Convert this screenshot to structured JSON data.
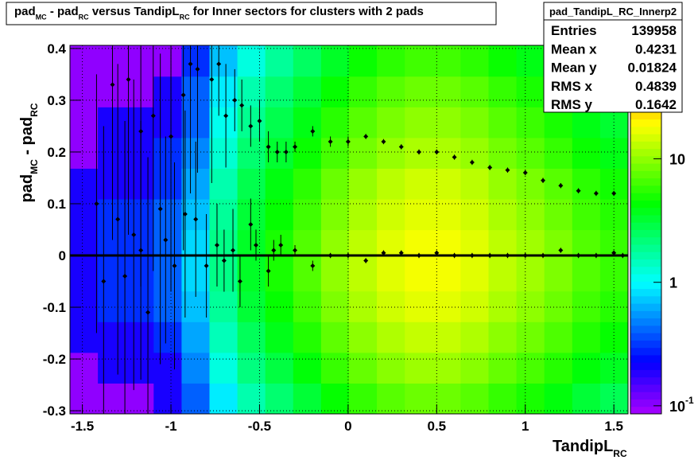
{
  "chart_data": {
    "type": "heatmap",
    "title_parts": [
      "pad",
      "MC",
      " - pad",
      "RC",
      " versus TandipL",
      "RC",
      " for Inner sectors for clusters with 2 pads"
    ],
    "ylabel_parts": [
      "pad",
      "MC",
      " - pad",
      "RC"
    ],
    "xlabel_parts": [
      "TandipL",
      "RC"
    ],
    "xlim": [
      -1.57,
      1.58
    ],
    "ylim": [
      -0.306,
      0.406
    ],
    "xticks": [
      -1.5,
      -1,
      -0.5,
      0,
      0.5,
      1,
      1.5
    ],
    "yticks": [
      -0.3,
      -0.2,
      -0.1,
      0,
      0.1,
      0.2,
      0.3,
      0.4
    ],
    "zlim": [
      0.086,
      83
    ],
    "zlog": true,
    "zticks": [
      {
        "value": 0.1,
        "label": "10",
        "exponent": "-1"
      },
      1,
      10
    ],
    "grid": true,
    "xbins": [
      -1.57,
      -1.4125,
      -1.255,
      -1.0975,
      -0.94,
      -0.7825,
      -0.625,
      -0.4675,
      -0.31,
      -0.1525,
      0.005,
      0.1625,
      0.32,
      0.4775,
      0.635,
      0.7925,
      0.95,
      1.1075,
      1.265,
      1.4225,
      1.58
    ],
    "ybins": [
      -0.306,
      -0.2467,
      -0.1874,
      -0.1281,
      -0.0688,
      -0.0095,
      0.0498,
      0.1091,
      0.1684,
      0.2277,
      0.287,
      0.3463,
      0.406
    ],
    "z": [
      [
        0.1,
        0.1,
        0.1,
        0.2,
        0.4,
        0.9,
        1.6,
        2.3,
        3.2,
        4.5,
        5.9,
        7.2,
        8.1,
        8.1,
        7.2,
        5.9,
        5,
        4.1,
        3.2,
        2.7
      ],
      [
        0.1,
        0.2,
        0.2,
        0.2,
        0.5,
        1.2,
        2.1,
        3,
        4.2,
        6,
        7.8,
        9.6,
        10.8,
        10.8,
        9.6,
        7.8,
        6.6,
        5.4,
        4.2,
        3.6
      ],
      [
        0.2,
        0.2,
        0.2,
        0.3,
        0.6,
        1.5,
        2.6,
        3.8,
        5.3,
        7.5,
        9.8,
        12,
        13.5,
        13.5,
        12,
        9.8,
        8.3,
        6.8,
        5.3,
        4.5
      ],
      [
        0.2,
        0.3,
        0.3,
        0.4,
        0.7,
        1.8,
        3.2,
        4.5,
        6.3,
        9,
        11.7,
        14.4,
        16.2,
        16.2,
        14.4,
        11.7,
        9.9,
        8.1,
        6.3,
        5.4
      ],
      [
        0.2,
        0.3,
        0.3,
        0.4,
        0.8,
        2,
        3.5,
        5,
        7,
        10,
        13,
        16,
        18,
        18,
        16,
        13,
        11,
        9,
        7,
        6
      ],
      [
        0.2,
        0.3,
        0.3,
        0.4,
        0.8,
        2,
        3.5,
        5,
        7,
        10,
        13,
        16,
        18,
        18,
        16,
        13,
        11,
        9,
        7,
        6
      ],
      [
        0.2,
        0.3,
        0.3,
        0.4,
        0.7,
        1.8,
        3.2,
        4.5,
        6.3,
        9,
        11.7,
        14.4,
        16.2,
        16.2,
        14.4,
        11.7,
        9.9,
        8.1,
        6.3,
        5.4
      ],
      [
        0.2,
        0.2,
        0.2,
        0.3,
        0.6,
        1.6,
        2.8,
        4,
        5.6,
        8,
        10.4,
        12.8,
        14.4,
        14.4,
        12.8,
        10.4,
        8.8,
        7.2,
        5.6,
        4.8
      ],
      [
        0.1,
        0.2,
        0.2,
        0.3,
        0.5,
        1.3,
        2.3,
        3.3,
        4.6,
        6.5,
        8.5,
        10.4,
        11.7,
        11.7,
        10.4,
        8.5,
        7.2,
        5.9,
        4.6,
        3.9
      ],
      [
        0.1,
        0.2,
        0.2,
        0.2,
        0.4,
        1.1,
        1.9,
        2.8,
        3.9,
        5.5,
        7.2,
        8.8,
        9.9,
        9.9,
        8.8,
        7.2,
        6.1,
        5,
        3.9,
        3.3
      ],
      [
        0.1,
        0.1,
        0.1,
        0.2,
        0.4,
        0.9,
        1.6,
        2.3,
        3.2,
        4.5,
        5.9,
        7.2,
        8.1,
        8.1,
        7.2,
        5.9,
        5,
        4.1,
        3.2,
        2.7
      ],
      [
        0.1,
        0.1,
        0.1,
        0.1,
        0.3,
        0.7,
        1.2,
        1.8,
        2.5,
        3.5,
        4.6,
        5.6,
        6.3,
        6.3,
        5.6,
        4.6,
        3.9,
        3.2,
        2.5,
        2.1
      ]
    ],
    "hline": 0,
    "profiles": [
      {
        "x": [
          -1.42,
          -1.38,
          -1.3,
          -1.26,
          -1.21,
          -1.17,
          -1.13,
          -1.06,
          -1.03,
          -0.98,
          -0.92,
          -0.86,
          -0.8,
          -0.74,
          -0.7,
          -0.65,
          -0.61,
          -0.55,
          -0.52,
          -0.45,
          -0.42,
          -0.38,
          -0.3,
          -0.2,
          -0.1,
          0,
          0.1,
          0.2,
          0.3,
          0.4,
          0.5,
          0.6,
          0.7,
          0.8,
          0.9,
          1,
          1.1,
          1.2,
          1.3,
          1.4,
          1.5,
          1.55
        ],
        "values": [
          0.1,
          -0.05,
          0.07,
          -0.04,
          0.04,
          0.01,
          -0.11,
          0.09,
          0.03,
          -0.02,
          0.08,
          0.07,
          -0.02,
          0.02,
          -0.01,
          0.01,
          -0.05,
          0.06,
          0.02,
          -0.03,
          0.01,
          0.02,
          0.01,
          -0.02,
          0,
          0,
          -0.01,
          0.005,
          0.005,
          0,
          0.005,
          0,
          0,
          0,
          0,
          0,
          0,
          0.01,
          0,
          0,
          0.005,
          0
        ],
        "errors": [
          0.25,
          0.3,
          0.3,
          0.3,
          0.3,
          0.25,
          0.3,
          0.3,
          0.2,
          0.2,
          0.2,
          0.15,
          0.1,
          0.08,
          0.06,
          0.08,
          0.05,
          0.05,
          0.03,
          0.03,
          0.02,
          0.02,
          0.01,
          0.01,
          0.005,
          0.005,
          0.005,
          0.005,
          0.005,
          0.005,
          0.005,
          0.005,
          0.005,
          0.005,
          0.005,
          0.005,
          0.005,
          0.005,
          0.005,
          0.005,
          0.005,
          0.005
        ]
      },
      {
        "x": [
          -1.33,
          -1.24,
          -1.17,
          -1.1,
          -1,
          -0.93,
          -0.89,
          -0.85,
          -0.77,
          -0.73,
          -0.69,
          -0.64,
          -0.6,
          -0.55,
          -0.5,
          -0.45,
          -0.4,
          -0.35,
          -0.3,
          -0.2,
          -0.1,
          0,
          0.1,
          0.2,
          0.3,
          0.4,
          0.5,
          0.6,
          0.7,
          0.8,
          0.9,
          1,
          1.1,
          1.2,
          1.3,
          1.4,
          1.5
        ],
        "values": [
          0.33,
          0.34,
          0.24,
          0.27,
          0.23,
          0.31,
          0.37,
          0.36,
          0.34,
          0.37,
          0.27,
          0.3,
          0.29,
          0.25,
          0.26,
          0.21,
          0.2,
          0.2,
          0.21,
          0.24,
          0.22,
          0.22,
          0.23,
          0.22,
          0.21,
          0.2,
          0.2,
          0.19,
          0.18,
          0.17,
          0.165,
          0.16,
          0.145,
          0.135,
          0.125,
          0.12,
          0.12
        ],
        "errors": [
          0.3,
          0.3,
          0.3,
          0.3,
          0.3,
          0.3,
          0.25,
          0.2,
          0.2,
          0.1,
          0.1,
          0.06,
          0.05,
          0.04,
          0.04,
          0.03,
          0.02,
          0.02,
          0.01,
          0.01,
          0.01,
          0.01,
          0.005,
          0.005,
          0.005,
          0.005,
          0.005,
          0.005,
          0.005,
          0.005,
          0.005,
          0.005,
          0.005,
          0.005,
          0.005,
          0.005,
          0.005
        ]
      }
    ],
    "stats": {
      "name": "pad_TandipL_RC_Innerp2",
      "rows": [
        [
          "Entries",
          139958
        ],
        [
          "Mean x",
          0.4231
        ],
        [
          "Mean y",
          0.01824
        ],
        [
          "RMS x",
          0.4839
        ],
        [
          "RMS y",
          0.1642
        ]
      ]
    }
  }
}
